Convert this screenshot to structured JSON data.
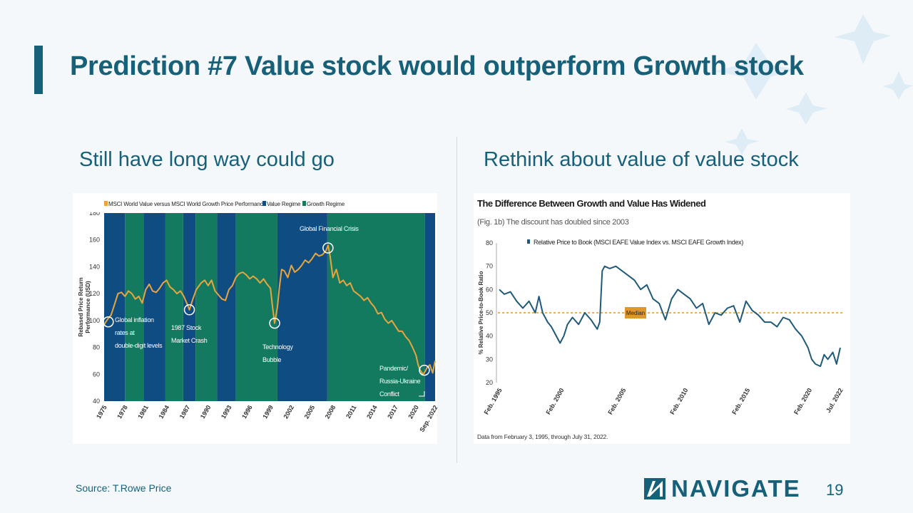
{
  "slide": {
    "title": "Prediction #7 Value stock would outperform Growth stock",
    "left_subtitle": "Still have long way could go",
    "right_subtitle": "Rethink about value of value stock",
    "source": "Source: T.Rowe Price",
    "logo_text": "NAVIGATE",
    "page_number": "19",
    "colors": {
      "accent": "#17607a",
      "value_regime": "#0f4c81",
      "growth_regime": "#137a5f",
      "line_left": "#e8a53c",
      "line_right": "#1f5a7a",
      "median": "#e0962a"
    }
  },
  "chart_data": [
    {
      "type": "line",
      "legend": [
        "MSCI World Value versus MSCI World Growth Price Performance",
        "Value Regime",
        "Growth Regime"
      ],
      "ylabel": "Rebased Price Return Performance (USD)",
      "ylim": [
        40,
        180
      ],
      "yticks": [
        "180",
        "160",
        "140",
        "120",
        "100",
        "80",
        "60",
        "40"
      ],
      "xticks": [
        "1975",
        "1978",
        "1981",
        "1984",
        "1987",
        "1990",
        "1993",
        "1996",
        "1999",
        "2002",
        "2005",
        "2008",
        "2011",
        "2014",
        "2017",
        "2020",
        "Sep. 2022"
      ],
      "x_range": [
        1975,
        2022.75
      ],
      "regimes": [
        {
          "type": "value",
          "start": 1975,
          "end": 1978
        },
        {
          "type": "growth",
          "start": 1978,
          "end": 1980.7
        },
        {
          "type": "value",
          "start": 1980.7,
          "end": 1983.8
        },
        {
          "type": "growth",
          "start": 1983.8,
          "end": 1986.4
        },
        {
          "type": "value",
          "start": 1986.4,
          "end": 1988.2
        },
        {
          "type": "growth",
          "start": 1988.2,
          "end": 1991.3
        },
        {
          "type": "value",
          "start": 1991.3,
          "end": 1994
        },
        {
          "type": "growth",
          "start": 1994,
          "end": 2000
        },
        {
          "type": "value",
          "start": 2000,
          "end": 2007.2
        },
        {
          "type": "growth",
          "start": 2007.2,
          "end": 2021.3
        },
        {
          "type": "value",
          "start": 2021.3,
          "end": 2022.75
        }
      ],
      "series": [
        {
          "x": [
            1975,
            1975.5,
            1976,
            1976.5,
            1977,
            1977.5,
            1978,
            1978.5,
            1979,
            1979.5,
            1980,
            1980.5,
            1981,
            1981.5,
            1982,
            1982.5,
            1983,
            1983.5,
            1984,
            1984.5,
            1985,
            1985.5,
            1986,
            1986.5,
            1987,
            1987.3,
            1987.8,
            1988.3,
            1989,
            1989.5,
            1990,
            1990.5,
            1991,
            1991.5,
            1992,
            1992.5,
            1993,
            1993.5,
            1994,
            1994.5,
            1995,
            1995.5,
            1996,
            1996.5,
            1997,
            1997.5,
            1998,
            1998.5,
            1999,
            1999.3,
            1999.6,
            2000,
            2000.3,
            2000.6,
            2001,
            2001.5,
            2002,
            2002.5,
            2003,
            2003.5,
            2004,
            2004.5,
            2005,
            2005.5,
            2006,
            2006.5,
            2007,
            2007.3,
            2007.6,
            2008,
            2008.5,
            2009,
            2009.5,
            2010,
            2010.5,
            2011,
            2011.5,
            2012,
            2012.5,
            2013,
            2013.5,
            2014,
            2014.5,
            2015,
            2015.5,
            2016,
            2016.5,
            2017,
            2017.5,
            2018,
            2018.5,
            2019,
            2019.5,
            2020,
            2020.3,
            2020.6,
            2021,
            2021.3,
            2021.6,
            2022,
            2022.4,
            2022.75
          ],
          "y": [
            97,
            101,
            104,
            112,
            120,
            121,
            118,
            122,
            120,
            116,
            118,
            113,
            123,
            127,
            122,
            121,
            124,
            128,
            130,
            125,
            123,
            120,
            122,
            118,
            112,
            108,
            116,
            123,
            128,
            130,
            126,
            130,
            122,
            119,
            116,
            115,
            123,
            126,
            132,
            135,
            136,
            134,
            131,
            133,
            131,
            128,
            131,
            127,
            124,
            110,
            98,
            110,
            125,
            138,
            137,
            132,
            141,
            136,
            138,
            141,
            145,
            143,
            146,
            150,
            148,
            149,
            152,
            156,
            148,
            132,
            138,
            128,
            130,
            126,
            128,
            122,
            120,
            118,
            115,
            117,
            113,
            110,
            105,
            106,
            101,
            98,
            100,
            96,
            92,
            92,
            88,
            85,
            80,
            74,
            67,
            63,
            60,
            62,
            65,
            67,
            61,
            70
          ]
        }
      ],
      "annotations": [
        {
          "text": [
            "Global inflation",
            "rates at",
            "double-digit levels"
          ]
        },
        {
          "text": [
            "1987 Stock",
            "Market Crash"
          ]
        },
        {
          "text": [
            "Technology",
            "Bubble"
          ]
        },
        {
          "text": [
            "Global Financial Crisis"
          ]
        },
        {
          "text": [
            "Pandemic/",
            "Russia-Ukraine",
            "Conflict"
          ]
        }
      ]
    },
    {
      "type": "line",
      "title": "The Difference Between Growth and Value Has Widened",
      "subtitle": "(Fig. 1b) The discount has doubled since 2003",
      "legend": [
        "Relative Price to Book (MSCI EAFE Value Index vs. MSCI EAFE Growth Index)"
      ],
      "ylabel": "% Relative Price-to-Book Ratio",
      "ylim": [
        20,
        80
      ],
      "yticks": [
        "80",
        "70",
        "60",
        "50",
        "40",
        "30",
        "20"
      ],
      "xticks": [
        "Feb. 1995",
        "Feb. 2000",
        "Feb. 2005",
        "Feb. 2010",
        "Feb. 2015",
        "Feb. 2020",
        "Jul. 2022"
      ],
      "x_range": [
        1995.1,
        2022.6
      ],
      "median": {
        "label": "Median",
        "value": 50
      },
      "note": "Data from February 3, 1995, through July 31, 2022.",
      "series": [
        {
          "x": [
            1995.1,
            1995.5,
            1996,
            1996.5,
            1997,
            1997.5,
            1998,
            1998.3,
            1998.6,
            1999,
            1999.3,
            1999.6,
            2000,
            2000.3,
            2000.6,
            2001,
            2001.5,
            2002,
            2002.5,
            2003,
            2003.2,
            2003.4,
            2003.6,
            2004,
            2004.5,
            2005,
            2005.5,
            2006,
            2006.5,
            2007,
            2007.5,
            2008,
            2008.5,
            2009,
            2009.5,
            2010,
            2010.5,
            2011,
            2011.5,
            2012,
            2012.5,
            2013,
            2013.5,
            2014,
            2014.5,
            2015,
            2015.5,
            2016,
            2016.5,
            2017,
            2017.5,
            2018,
            2018.5,
            2019,
            2019.5,
            2020,
            2020.3,
            2020.6,
            2021,
            2021.3,
            2021.6,
            2022,
            2022.3,
            2022.6
          ],
          "y": [
            60,
            58,
            59,
            55,
            52,
            55,
            50,
            57,
            50,
            46,
            44,
            41,
            37,
            40,
            45,
            48,
            45,
            50,
            47,
            43,
            46,
            68,
            70,
            69,
            70,
            68,
            66,
            64,
            60,
            62,
            56,
            54,
            47,
            56,
            60,
            58,
            56,
            52,
            54,
            45,
            50,
            49,
            52,
            53,
            46,
            55,
            51,
            49,
            46,
            46,
            44,
            48,
            47,
            43,
            40,
            35,
            30,
            28,
            27,
            32,
            30,
            33,
            28,
            35
          ]
        }
      ]
    }
  ]
}
